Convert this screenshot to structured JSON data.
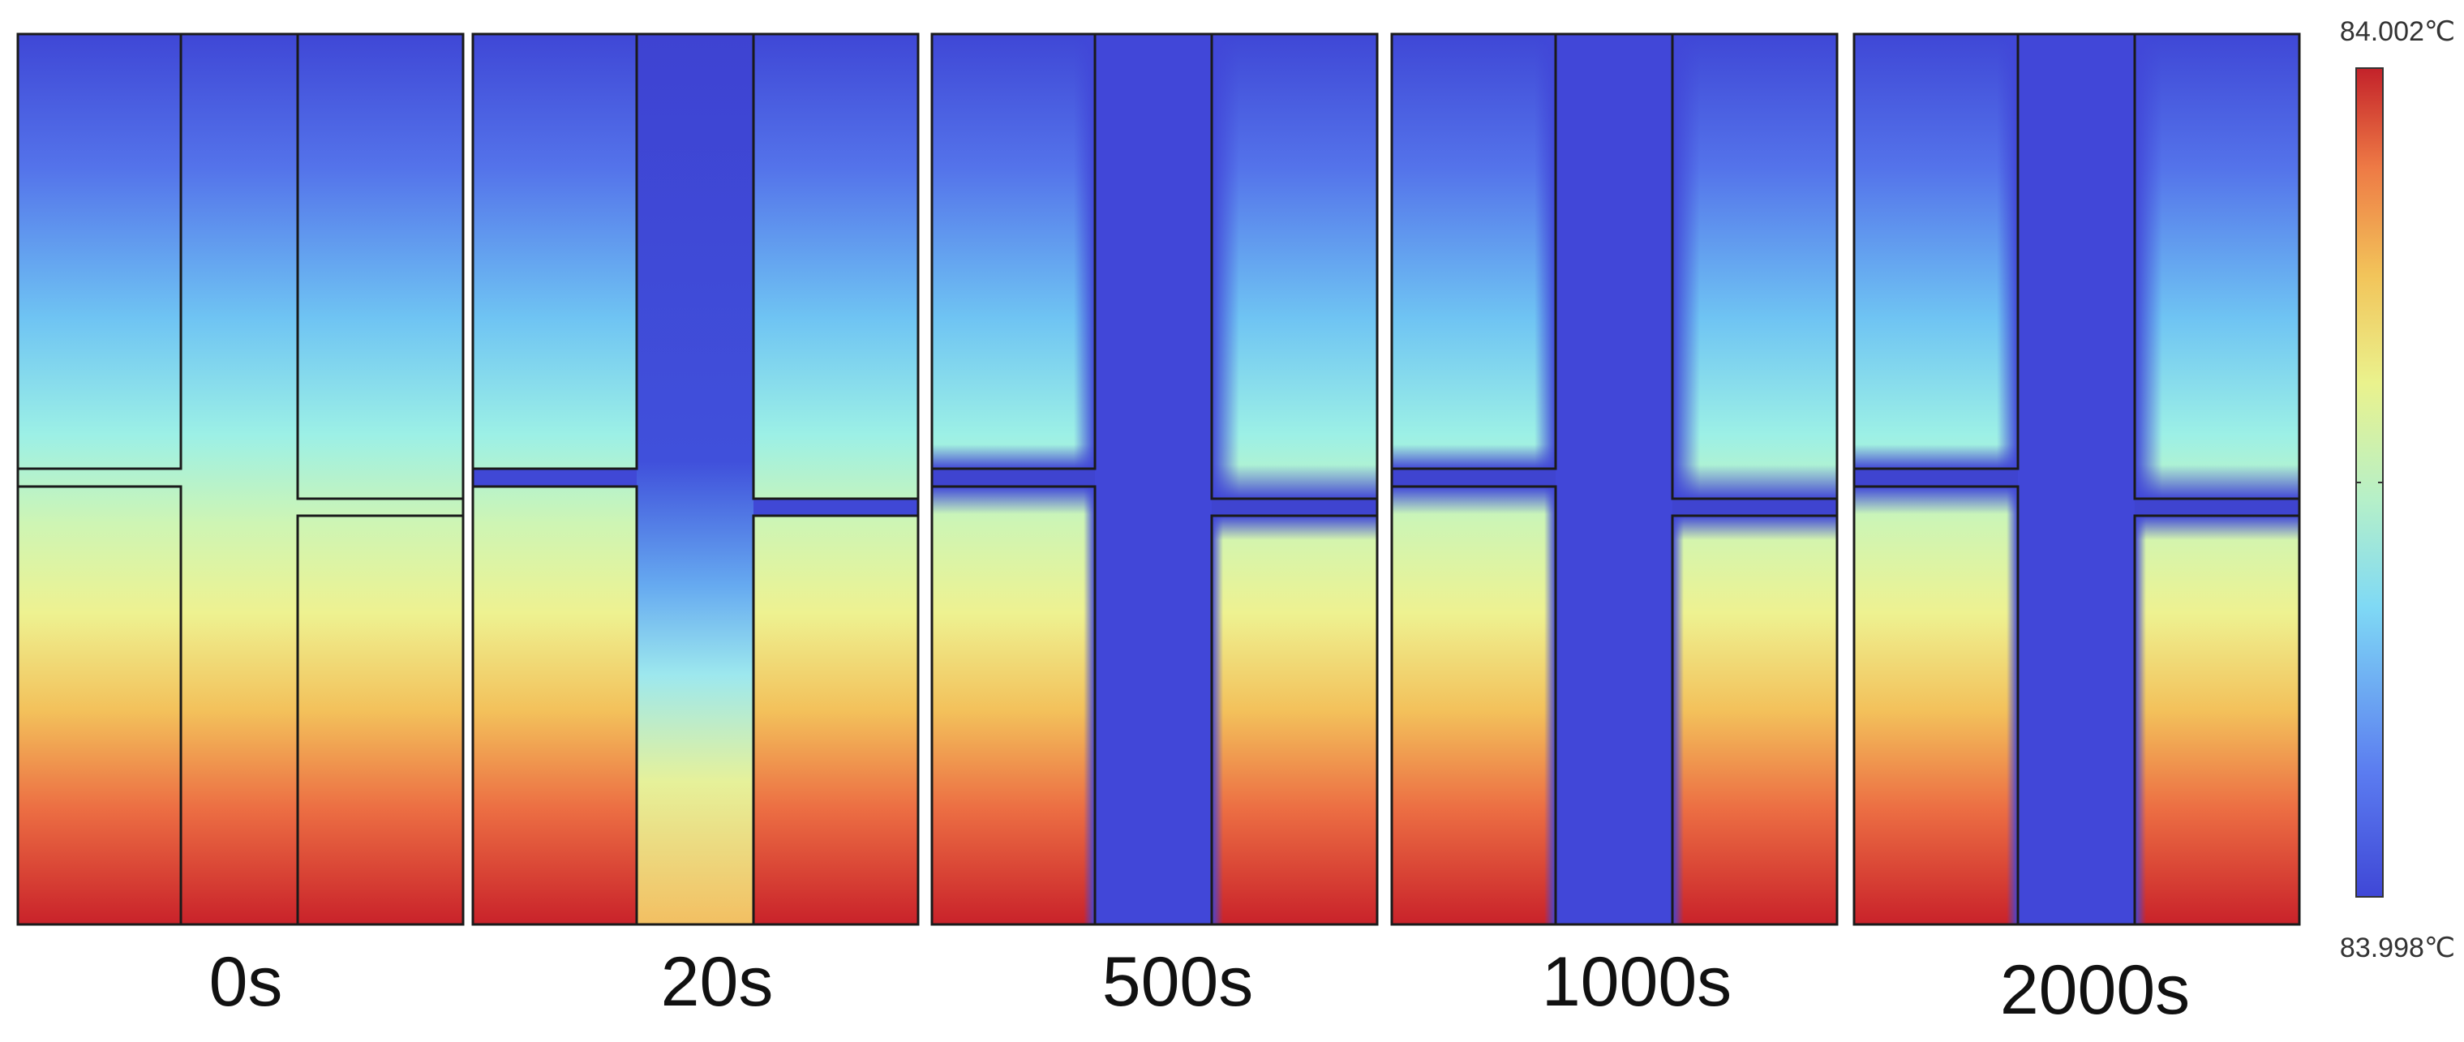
{
  "colorbar": {
    "max_label": "84.002℃",
    "min_label": "83.998℃",
    "colors": [
      "#3f47d6",
      "#5b7cf0",
      "#7fd9f5",
      "#b6f0c8",
      "#eaf28d",
      "#f2c45a",
      "#ee7a45",
      "#d8322b",
      "#b31d1d"
    ]
  },
  "panels": [
    {
      "time": "0s",
      "mode": "initial"
    },
    {
      "time": "20s",
      "mode": "early"
    },
    {
      "time": "500s",
      "mode": "steady"
    },
    {
      "time": "1000s",
      "mode": "steady"
    },
    {
      "time": "2000s",
      "mode": "steady"
    }
  ]
}
